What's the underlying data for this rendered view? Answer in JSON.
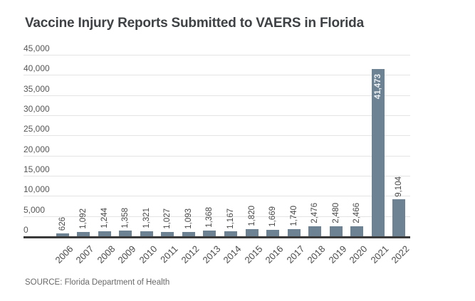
{
  "header": {
    "title": "Vaccine Injury Reports Submitted to VAERS in Florida"
  },
  "footer": {
    "source": "SOURCE: Florida Department of Health"
  },
  "chart_data": {
    "type": "bar",
    "title": "Vaccine Injury Reports Submitted to VAERS in Florida",
    "categories": [
      "2006",
      "2007",
      "2008",
      "2009",
      "2010",
      "2011",
      "2012",
      "2013",
      "2014",
      "2015",
      "2016",
      "2017",
      "2018",
      "2019",
      "2020",
      "2021",
      "2022"
    ],
    "values": [
      626,
      1092,
      1244,
      1358,
      1321,
      1027,
      1093,
      1368,
      1167,
      1820,
      1669,
      1740,
      2476,
      2480,
      2466,
      41473,
      9104
    ],
    "value_labels": [
      "626",
      "1,092",
      "1,244",
      "1,358",
      "1,321",
      "1,027",
      "1,093",
      "1,368",
      "1,167",
      "1,820",
      "1,669",
      "1,740",
      "2,476",
      "2,480",
      "2,466",
      "41,473",
      "9,104"
    ],
    "label_inside_bar": [
      false,
      false,
      false,
      false,
      false,
      false,
      false,
      false,
      false,
      false,
      false,
      false,
      false,
      false,
      false,
      true,
      false
    ],
    "xlabel": "",
    "ylabel": "",
    "ylim": [
      0,
      45000
    ],
    "ytick_interval": 5000,
    "ytick_labels": [
      "45,000",
      "40,000",
      "35,000",
      "30,000",
      "25,000",
      "20,000",
      "15,000",
      "10,000",
      "5,000",
      "0"
    ],
    "grid": "horizontal",
    "legend": "none",
    "source": "SOURCE: Florida Department of Health",
    "colors": {
      "bar": "#6d8394",
      "value_label": "#484848",
      "value_label_inside": "#edf1f3",
      "gridline": "#e4e4e4",
      "axis_line": "#3a3a3a",
      "tick_label": "#565656",
      "title": "#3f4245",
      "source": "#696969",
      "background": "#ffffff"
    }
  }
}
